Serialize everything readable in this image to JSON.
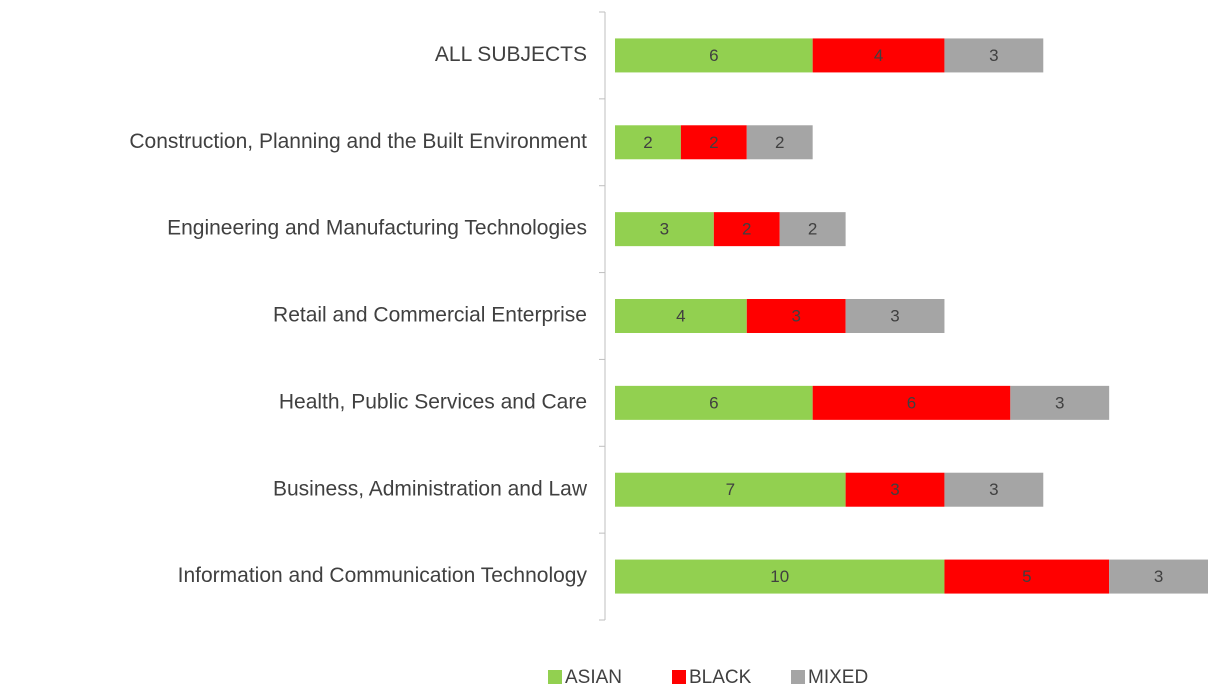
{
  "chart_data": {
    "type": "stacked-bar-horizontal",
    "categories": [
      "ALL SUBJECTS",
      "Construction, Planning and the Built Environment",
      "Engineering and Manufacturing Technologies",
      "Retail and Commercial Enterprise",
      "Health, Public Services and Care",
      "Business, Administration and Law",
      "Information and Communication Technology"
    ],
    "series": [
      {
        "name": "ASIAN",
        "color": "#92d050",
        "values": [
          6,
          2,
          3,
          4,
          6,
          7,
          10
        ]
      },
      {
        "name": "BLACK",
        "color": "#ff0000",
        "values": [
          4,
          2,
          2,
          3,
          6,
          3,
          5
        ]
      },
      {
        "name": "MIXED",
        "color": "#a5a5a5",
        "values": [
          3,
          2,
          2,
          3,
          3,
          3,
          3
        ]
      }
    ],
    "xlim": [
      0,
      18
    ],
    "legend": "bottom"
  }
}
